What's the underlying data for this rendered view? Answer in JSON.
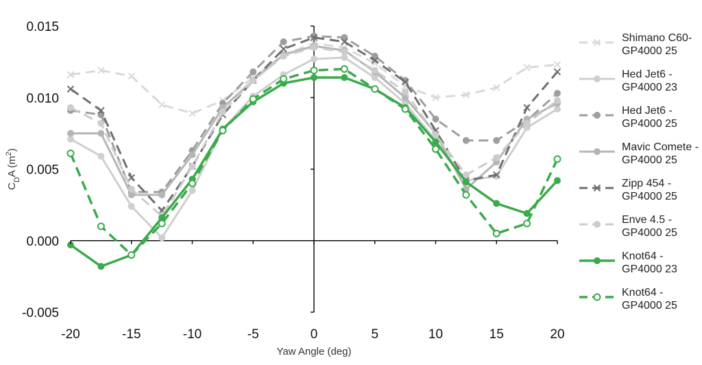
{
  "chart_data": {
    "type": "line",
    "title": "",
    "xlabel": "Yaw Angle (deg)",
    "ylabel_main": "C",
    "ylabel_sub": "D",
    "ylabel_tail": "A (m",
    "ylabel_sup": "2",
    "ylabel_end": ")",
    "ylim": [
      -0.005,
      0.015
    ],
    "xlim": [
      -20,
      20
    ],
    "y_ticks": [
      "0.015",
      "0.010",
      "0.005",
      "0.000",
      "-0.005"
    ],
    "y_tick_values": [
      0.015,
      0.01,
      0.005,
      0.0,
      -0.005
    ],
    "x_ticks": [
      "-20",
      "-15",
      "-10",
      "-5",
      "0",
      "5",
      "10",
      "15",
      "20"
    ],
    "x_tick_values": [
      -20,
      -15,
      -10,
      -5,
      0,
      5,
      10,
      15,
      20
    ],
    "x": [
      -20,
      -17.5,
      -15,
      -12.5,
      -10,
      -7.5,
      -5,
      -2.5,
      0,
      2.5,
      5,
      7.5,
      10,
      12.5,
      15,
      17.5,
      20
    ],
    "legend_position": "right",
    "series": [
      {
        "name_lines": [
          "Shimano C60-",
          "GP4000 25"
        ],
        "color": "#d9d9d9",
        "dash": "dash",
        "width": 3,
        "marker": "x",
        "values": [
          0.0116,
          0.0119,
          0.0115,
          0.0095,
          0.0089,
          0.0098,
          0.0114,
          0.013,
          0.0138,
          0.0135,
          0.0124,
          0.0108,
          0.01,
          0.0102,
          0.0107,
          0.0121,
          0.0123
        ]
      },
      {
        "name_lines": [
          "Hed Jet6 -",
          "GP4000 23"
        ],
        "color": "#cfcfcf",
        "dash": "solid",
        "width": 3,
        "marker": "dot",
        "values": [
          0.0071,
          0.0059,
          0.0024,
          0.0002,
          0.0035,
          0.0078,
          0.0101,
          0.0116,
          0.0127,
          0.0128,
          0.0114,
          0.0096,
          0.007,
          0.0042,
          0.0045,
          0.0079,
          0.0092
        ]
      },
      {
        "name_lines": [
          "Hed Jet6 -",
          "GP4000 25"
        ],
        "color": "#9e9e9e",
        "dash": "dash",
        "width": 3,
        "marker": "dot",
        "values": [
          0.0091,
          0.0088,
          0.0034,
          0.0034,
          0.0063,
          0.0096,
          0.0118,
          0.0139,
          0.0143,
          0.0142,
          0.0129,
          0.0112,
          0.0085,
          0.007,
          0.007,
          0.0084,
          0.0103
        ]
      },
      {
        "name_lines": [
          "Mavic Comete -",
          "GP4000 25"
        ],
        "color": "#b5b5b5",
        "dash": "solid",
        "width": 3,
        "marker": "dot",
        "values": [
          0.0075,
          0.0075,
          0.0032,
          0.0032,
          0.006,
          0.0093,
          0.0112,
          0.013,
          0.0136,
          0.0133,
          0.0118,
          0.01,
          0.0075,
          0.0036,
          0.0055,
          0.0085,
          0.0096
        ]
      },
      {
        "name_lines": [
          "Zipp 454 -",
          "GP4000 25"
        ],
        "color": "#6f6f6f",
        "dash": "dash",
        "width": 3,
        "marker": "x",
        "values": [
          0.0106,
          0.0091,
          0.0044,
          0.0021,
          0.0052,
          0.0088,
          0.0112,
          0.0134,
          0.0142,
          0.0139,
          0.0126,
          0.0111,
          0.0077,
          0.0042,
          0.0046,
          0.0093,
          0.0118
        ]
      },
      {
        "name_lines": [
          "Enve 4.5 -",
          "GP4000 25"
        ],
        "color": "#cccccc",
        "dash": "dash",
        "width": 3,
        "marker": "dot",
        "values": [
          0.0093,
          0.0082,
          0.0036,
          0.0017,
          0.0052,
          0.009,
          0.0112,
          0.0129,
          0.0135,
          0.0132,
          0.0119,
          0.0104,
          0.0074,
          0.0046,
          0.0058,
          0.0082,
          0.0098
        ]
      },
      {
        "name_lines": [
          "Knot64 -",
          "GP4000 23"
        ],
        "color": "#3aaa4a",
        "dash": "solid",
        "width": 3.5,
        "marker": "filled",
        "values": [
          -0.0003,
          -0.0018,
          -0.001,
          0.0016,
          0.0043,
          0.0078,
          0.0097,
          0.011,
          0.0114,
          0.0114,
          0.0106,
          0.0093,
          0.0069,
          0.0041,
          0.0026,
          0.0019,
          0.0042
        ]
      },
      {
        "name_lines": [
          "Knot64 -",
          "GP4000 25"
        ],
        "color": "#3aaa4a",
        "dash": "dash",
        "width": 3.5,
        "marker": "open",
        "values": [
          0.0061,
          0.001,
          -0.001,
          0.0012,
          0.004,
          0.0077,
          0.0099,
          0.0113,
          0.0119,
          0.012,
          0.0106,
          0.0092,
          0.0064,
          0.0032,
          0.0005,
          0.0012,
          0.0057
        ]
      }
    ]
  }
}
